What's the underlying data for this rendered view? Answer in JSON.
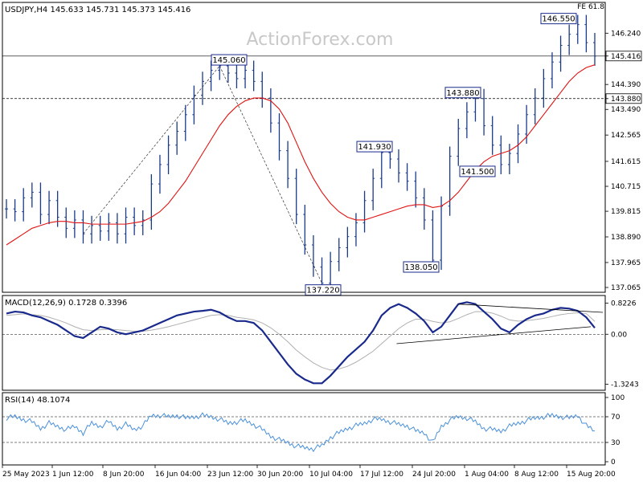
{
  "chart_data": [
    {
      "type": "candlestick",
      "header": "USDJPY,H4  145.633 145.731 145.373 145.416",
      "watermark": "ActionForex.com",
      "corner_label": "FE 61.8",
      "y_ticks": [
        "146.240",
        "145.416",
        "144.390",
        "143.880",
        "143.490",
        "142.565",
        "141.615",
        "140.715",
        "139.815",
        "138.890",
        "137.965",
        "137.065"
      ],
      "ylim": [
        137.065,
        146.8
      ],
      "current_price": "145.416",
      "level_line": "143.880",
      "annotations": [
        {
          "label": "146.550",
          "x": "15 Aug",
          "y": 146.55
        },
        {
          "label": "145.060",
          "x": "30 Jun",
          "y": 145.06
        },
        {
          "label": "143.880",
          "x": "1 Aug",
          "y": 143.88
        },
        {
          "label": "141.930",
          "x": "24 Jul",
          "y": 141.93
        },
        {
          "label": "141.500",
          "x": "8 Aug",
          "y": 141.5
        },
        {
          "label": "138.050",
          "x": "1 Aug",
          "y": 138.05
        },
        {
          "label": "137.220",
          "x": "17 Jul",
          "y": 137.22
        }
      ],
      "series": [
        {
          "name": "price",
          "values": [
            139.9,
            139.8,
            140.3,
            140.5,
            139.7,
            140.2,
            139.6,
            139.2,
            139.5,
            139.0,
            139.3,
            139.1,
            139.4,
            139.0,
            139.6,
            139.3,
            139.5,
            140.8,
            141.5,
            142.2,
            142.7,
            143.3,
            144.0,
            144.5,
            144.9,
            145.06,
            144.8,
            144.6,
            144.9,
            144.5,
            143.9,
            143.0,
            142.0,
            141.0,
            139.7,
            138.6,
            137.8,
            137.22,
            138.0,
            138.5,
            138.9,
            139.4,
            140.2,
            141.0,
            141.93,
            141.7,
            141.2,
            140.9,
            140.3,
            139.5,
            138.05,
            140.0,
            141.8,
            142.8,
            143.4,
            143.88,
            142.9,
            142.2,
            141.5,
            141.9,
            142.6,
            143.3,
            143.9,
            144.6,
            145.2,
            145.8,
            146.2,
            146.55,
            145.9,
            145.416
          ]
        },
        {
          "name": "ma",
          "values": [
            138.6,
            138.8,
            139.0,
            139.2,
            139.3,
            139.4,
            139.45,
            139.45,
            139.4,
            139.4,
            139.35,
            139.35,
            139.35,
            139.35,
            139.35,
            139.4,
            139.45,
            139.6,
            139.8,
            140.1,
            140.5,
            140.9,
            141.4,
            141.9,
            142.4,
            142.9,
            143.3,
            143.6,
            143.8,
            143.9,
            143.9,
            143.8,
            143.5,
            143.0,
            142.3,
            141.6,
            141.0,
            140.5,
            140.1,
            139.8,
            139.6,
            139.5,
            139.5,
            139.6,
            139.7,
            139.8,
            139.9,
            140.0,
            140.05,
            140.05,
            139.95,
            140.0,
            140.2,
            140.5,
            140.9,
            141.3,
            141.6,
            141.8,
            141.9,
            142.0,
            142.2,
            142.5,
            142.9,
            143.3,
            143.7,
            144.1,
            144.5,
            144.8,
            145.0,
            145.1
          ]
        }
      ]
    },
    {
      "type": "line",
      "title": "MACD(12,26,9) 0.1728 0.3396",
      "y_ticks": [
        "0.8226",
        "0.00",
        "-1.3243"
      ],
      "ylim": [
        -1.4,
        0.9
      ],
      "series": [
        {
          "name": "macd",
          "values": [
            0.55,
            0.6,
            0.58,
            0.5,
            0.45,
            0.35,
            0.25,
            0.1,
            -0.05,
            -0.1,
            0.05,
            0.2,
            0.15,
            0.05,
            0.0,
            0.05,
            0.1,
            0.2,
            0.3,
            0.4,
            0.5,
            0.55,
            0.6,
            0.62,
            0.65,
            0.58,
            0.45,
            0.35,
            0.35,
            0.3,
            0.1,
            -0.2,
            -0.5,
            -0.8,
            -1.05,
            -1.2,
            -1.3,
            -1.3,
            -1.1,
            -0.85,
            -0.6,
            -0.4,
            -0.2,
            0.1,
            0.5,
            0.7,
            0.8,
            0.7,
            0.55,
            0.35,
            0.05,
            0.2,
            0.5,
            0.8,
            0.85,
            0.8,
            0.6,
            0.4,
            0.15,
            0.05,
            0.25,
            0.4,
            0.5,
            0.55,
            0.65,
            0.7,
            0.68,
            0.62,
            0.45,
            0.17
          ]
        },
        {
          "name": "signal",
          "values": [
            0.5,
            0.52,
            0.54,
            0.52,
            0.5,
            0.45,
            0.38,
            0.3,
            0.2,
            0.12,
            0.1,
            0.12,
            0.13,
            0.12,
            0.1,
            0.08,
            0.08,
            0.11,
            0.15,
            0.2,
            0.26,
            0.32,
            0.38,
            0.44,
            0.5,
            0.52,
            0.5,
            0.45,
            0.42,
            0.38,
            0.3,
            0.17,
            0.0,
            -0.2,
            -0.42,
            -0.6,
            -0.76,
            -0.88,
            -0.95,
            -0.92,
            -0.85,
            -0.74,
            -0.6,
            -0.45,
            -0.25,
            -0.05,
            0.15,
            0.3,
            0.4,
            0.4,
            0.34,
            0.3,
            0.33,
            0.42,
            0.52,
            0.6,
            0.6,
            0.56,
            0.48,
            0.38,
            0.35,
            0.36,
            0.39,
            0.42,
            0.47,
            0.52,
            0.55,
            0.57,
            0.55,
            0.34
          ]
        }
      ],
      "trendlines": [
        "upper",
        "lower"
      ]
    },
    {
      "type": "line",
      "title": "RSI(14) 48.1074",
      "y_ticks": [
        "100",
        "70",
        "30",
        "0"
      ],
      "ylim": [
        0,
        100
      ],
      "series": [
        {
          "name": "rsi",
          "values": [
            68,
            70,
            66,
            62,
            52,
            60,
            55,
            50,
            55,
            45,
            60,
            55,
            62,
            52,
            58,
            50,
            56,
            72,
            72,
            70,
            72,
            68,
            70,
            72,
            70,
            66,
            60,
            62,
            64,
            58,
            50,
            40,
            34,
            30,
            24,
            22,
            20,
            25,
            38,
            45,
            52,
            56,
            60,
            66,
            66,
            62,
            58,
            56,
            48,
            45,
            30,
            55,
            65,
            70,
            68,
            62,
            52,
            50,
            48,
            55,
            60,
            64,
            68,
            70,
            72,
            70,
            68,
            72,
            56,
            48
          ]
        }
      ]
    }
  ],
  "x_labels": [
    "25 May 2023",
    "1 Jun 12:00",
    "8 Jun 20:00",
    "16 Jun 04:00",
    "23 Jun 12:00",
    "30 Jun 20:00",
    "10 Jul 04:00",
    "17 Jul 12:00",
    "24 Jul 20:00",
    "1 Aug 04:00",
    "8 Aug 12:00",
    "15 Aug 20:00"
  ],
  "colors": {
    "price": "#1b3a8a",
    "ma": "#e01414",
    "macd": "#1a2a8c",
    "signal": "#b0b0b0",
    "rsi": "#4a90d9",
    "grid": "#000000"
  }
}
